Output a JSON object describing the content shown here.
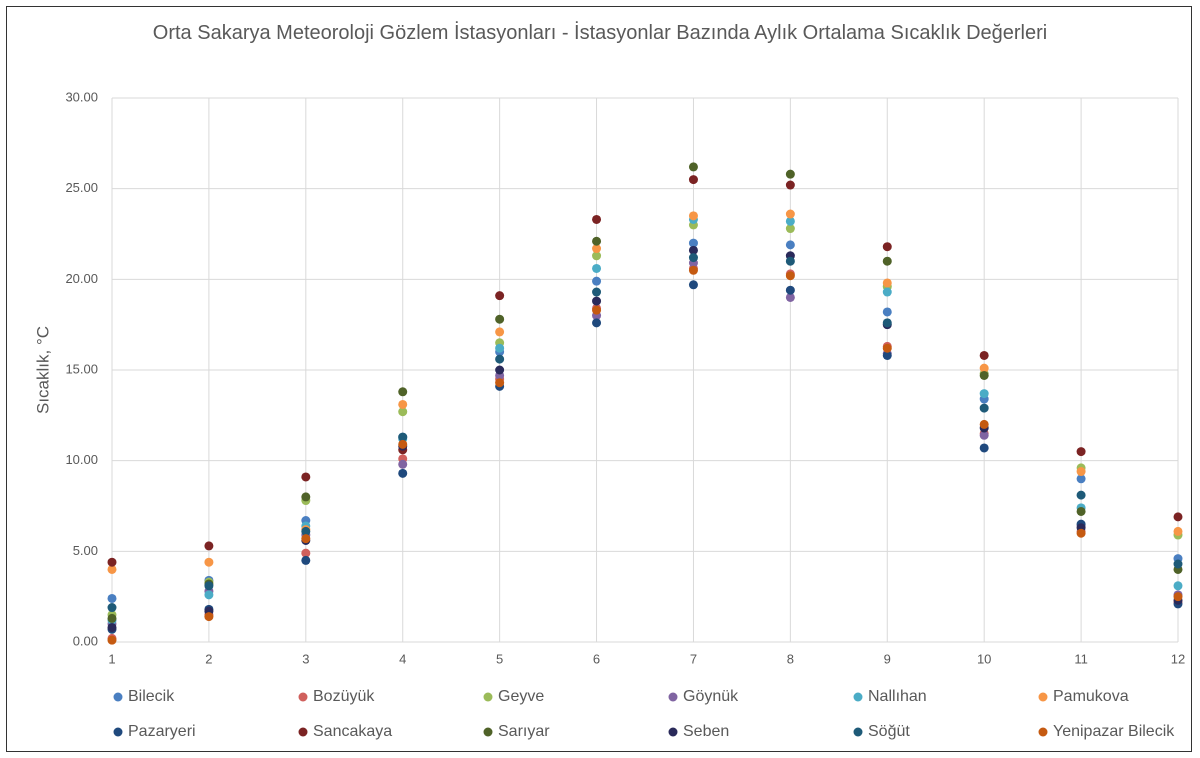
{
  "chart_data": {
    "type": "scatter",
    "title": "Orta Sakarya Meteoroloji Gözlem İstasyonları - İstasyonlar Bazında Aylık Ortalama Sıcaklık Değerleri",
    "y_label": "Sıcaklık, °C",
    "x": [
      1,
      2,
      3,
      4,
      5,
      6,
      7,
      8,
      9,
      10,
      11,
      12
    ],
    "xlim": [
      1,
      12
    ],
    "xticks": [
      1,
      2,
      3,
      4,
      5,
      6,
      7,
      8,
      9,
      10,
      11,
      12
    ],
    "ylim": [
      0,
      30
    ],
    "yticks": [
      {
        "value": 0,
        "label": "0.00"
      },
      {
        "value": 5,
        "label": "5.00"
      },
      {
        "value": 10,
        "label": "10.00"
      },
      {
        "value": 15,
        "label": "15.00"
      },
      {
        "value": 20,
        "label": "20.00"
      },
      {
        "value": 25,
        "label": "25.00"
      },
      {
        "value": 30,
        "label": "30.00"
      }
    ],
    "grid": true,
    "legend": "bottom",
    "series": [
      {
        "name": "Bilecik",
        "color": "#4a7fc1",
        "values": [
          2.4,
          3.4,
          6.7,
          11.3,
          16.0,
          19.9,
          22.0,
          21.9,
          18.2,
          13.4,
          9.0,
          4.6
        ]
      },
      {
        "name": "Bozüyük",
        "color": "#d0605d",
        "values": [
          0.2,
          1.5,
          4.9,
          10.1,
          14.5,
          18.4,
          20.6,
          20.3,
          16.3,
          11.5,
          6.1,
          2.2
        ]
      },
      {
        "name": "Geyve",
        "color": "#9bbb59",
        "values": [
          1.5,
          3.3,
          7.8,
          12.7,
          16.5,
          21.3,
          23.0,
          22.8,
          19.6,
          14.8,
          9.6,
          5.9
        ]
      },
      {
        "name": "Göynük",
        "color": "#8064a2",
        "values": [
          1.0,
          2.8,
          5.9,
          9.8,
          14.7,
          18.0,
          20.9,
          19.0,
          15.9,
          11.4,
          6.4,
          2.6
        ]
      },
      {
        "name": "Nallıhan",
        "color": "#4bacc6",
        "values": [
          1.2,
          2.6,
          6.4,
          11.2,
          16.2,
          20.6,
          23.3,
          23.2,
          19.3,
          13.7,
          7.4,
          3.1
        ]
      },
      {
        "name": "Pamukova",
        "color": "#f79646",
        "values": [
          4.0,
          4.4,
          6.2,
          13.1,
          17.1,
          21.7,
          23.5,
          23.6,
          19.8,
          15.1,
          9.4,
          6.1
        ]
      },
      {
        "name": "Pazaryeri",
        "color": "#1f497d",
        "values": [
          0.7,
          1.8,
          4.5,
          9.3,
          14.1,
          17.6,
          19.7,
          19.4,
          15.8,
          10.7,
          6.5,
          2.1
        ]
      },
      {
        "name": "Sancakaya",
        "color": "#7b2323",
        "values": [
          4.4,
          5.3,
          9.1,
          10.6,
          19.1,
          23.3,
          25.5,
          25.2,
          21.8,
          15.8,
          10.5,
          6.9
        ]
      },
      {
        "name": "Sarıyar",
        "color": "#4f6228",
        "values": [
          1.3,
          3.2,
          8.0,
          13.8,
          17.8,
          22.1,
          26.2,
          25.8,
          21.0,
          14.7,
          7.2,
          4.0
        ]
      },
      {
        "name": "Seben",
        "color": "#2a2a5a",
        "values": [
          0.8,
          1.7,
          5.6,
          10.8,
          15.0,
          18.8,
          21.6,
          21.3,
          17.5,
          11.8,
          6.3,
          2.3
        ]
      },
      {
        "name": "Söğüt",
        "color": "#1e5a78",
        "values": [
          1.9,
          3.1,
          6.1,
          11.3,
          15.6,
          19.3,
          21.2,
          21.0,
          17.6,
          12.9,
          8.1,
          4.3
        ]
      },
      {
        "name": "Yenipazar Bilecik",
        "color": "#c55a11",
        "values": [
          0.1,
          1.4,
          5.7,
          10.9,
          14.3,
          18.3,
          20.5,
          20.2,
          16.2,
          12.0,
          6.0,
          2.5
        ]
      }
    ]
  }
}
